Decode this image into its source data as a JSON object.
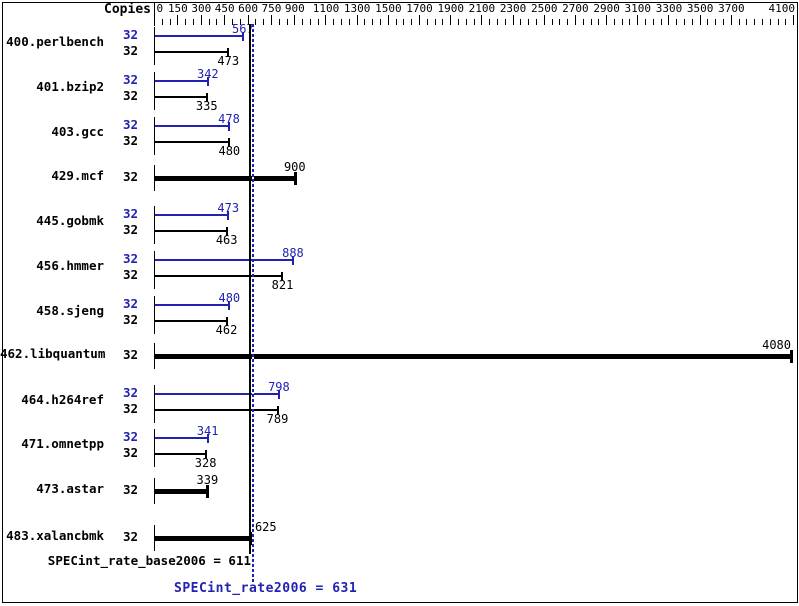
{
  "header": {
    "copies_label": "Copies"
  },
  "chart_data": {
    "type": "bar",
    "orientation": "horizontal",
    "title": "",
    "axis": {
      "side": "top",
      "min": 0,
      "max": 4100,
      "minor_tick_step": 50,
      "labeled_ticks": [
        0,
        150,
        300,
        450,
        600,
        750,
        900,
        1100,
        1300,
        1500,
        1700,
        1900,
        2100,
        2300,
        2500,
        2700,
        2900,
        3100,
        3300,
        3500,
        3700,
        4100
      ]
    },
    "colors": {
      "peak": "#2222b2",
      "base": "#000000"
    },
    "benchmarks": [
      {
        "name": "400.perlbench",
        "copies": 32,
        "peak": 567,
        "base": 473,
        "single": false
      },
      {
        "name": "401.bzip2",
        "copies": 32,
        "peak": 342,
        "base": 335,
        "single": false
      },
      {
        "name": "403.gcc",
        "copies": 32,
        "peak": 478,
        "base": 480,
        "single": false
      },
      {
        "name": "429.mcf",
        "copies": 32,
        "peak": null,
        "base": 900,
        "single": true
      },
      {
        "name": "445.gobmk",
        "copies": 32,
        "peak": 473,
        "base": 463,
        "single": false
      },
      {
        "name": "456.hmmer",
        "copies": 32,
        "peak": 888,
        "base": 821,
        "single": false
      },
      {
        "name": "458.sjeng",
        "copies": 32,
        "peak": 480,
        "base": 462,
        "single": false
      },
      {
        "name": "462.libquantum",
        "copies": 32,
        "peak": null,
        "base": 4080,
        "single": true,
        "label_align": "right-clamp"
      },
      {
        "name": "464.h264ref",
        "copies": 32,
        "peak": 798,
        "base": 789,
        "single": false
      },
      {
        "name": "471.omnetpp",
        "copies": 32,
        "peak": 341,
        "base": 328,
        "single": false
      },
      {
        "name": "473.astar",
        "copies": 32,
        "peak": null,
        "base": 339,
        "single": true
      },
      {
        "name": "483.xalancbmk",
        "copies": 32,
        "peak": null,
        "base": 625,
        "single": true,
        "label_align": "after-end"
      }
    ],
    "reference_lines": {
      "base": {
        "value": 611,
        "style": "solid",
        "color": "#000000"
      },
      "peak": {
        "value": 631,
        "style": "dotted",
        "color": "#2222b2"
      }
    },
    "footer": {
      "base_label": "SPECint_rate_base2006 = 611",
      "peak_label": "SPECint_rate2006 = 631"
    }
  }
}
